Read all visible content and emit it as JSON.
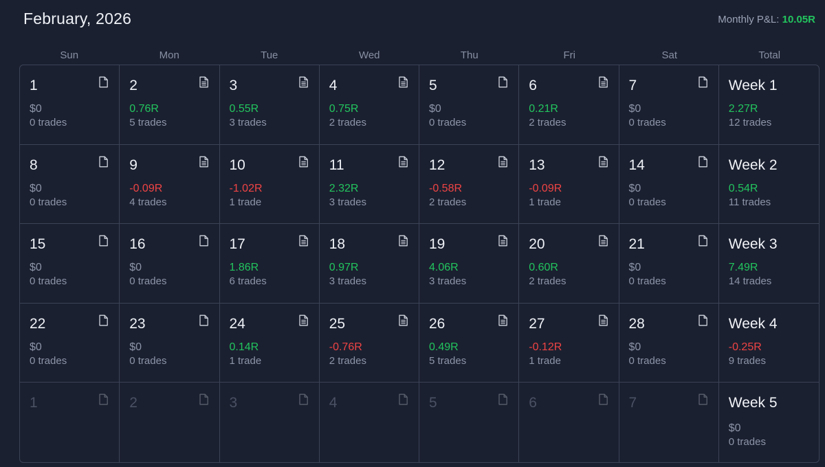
{
  "header": {
    "title": "February, 2026",
    "monthly_label": "Monthly P&L:",
    "monthly_value": "10.05R"
  },
  "weekdays": [
    "Sun",
    "Mon",
    "Tue",
    "Wed",
    "Thu",
    "Fri",
    "Sat",
    "Total"
  ],
  "weeks": [
    {
      "days": [
        {
          "day": "1",
          "pnl": "$0",
          "trades": "0 trades",
          "sign": "zero",
          "note": "blank"
        },
        {
          "day": "2",
          "pnl": "0.76R",
          "trades": "5 trades",
          "sign": "pos",
          "note": "lines"
        },
        {
          "day": "3",
          "pnl": "0.55R",
          "trades": "3 trades",
          "sign": "pos",
          "note": "lines"
        },
        {
          "day": "4",
          "pnl": "0.75R",
          "trades": "2 trades",
          "sign": "pos",
          "note": "lines"
        },
        {
          "day": "5",
          "pnl": "$0",
          "trades": "0 trades",
          "sign": "zero",
          "note": "blank"
        },
        {
          "day": "6",
          "pnl": "0.21R",
          "trades": "2 trades",
          "sign": "pos",
          "note": "lines"
        },
        {
          "day": "7",
          "pnl": "$0",
          "trades": "0 trades",
          "sign": "zero",
          "note": "blank"
        }
      ],
      "total": {
        "label": "Week 1",
        "pnl": "2.27R",
        "trades": "12 trades",
        "sign": "pos"
      }
    },
    {
      "days": [
        {
          "day": "8",
          "pnl": "$0",
          "trades": "0 trades",
          "sign": "zero",
          "note": "blank"
        },
        {
          "day": "9",
          "pnl": "-0.09R",
          "trades": "4 trades",
          "sign": "neg",
          "note": "lines"
        },
        {
          "day": "10",
          "pnl": "-1.02R",
          "trades": "1 trade",
          "sign": "neg",
          "note": "lines"
        },
        {
          "day": "11",
          "pnl": "2.32R",
          "trades": "3 trades",
          "sign": "pos",
          "note": "lines"
        },
        {
          "day": "12",
          "pnl": "-0.58R",
          "trades": "2 trades",
          "sign": "neg",
          "note": "lines"
        },
        {
          "day": "13",
          "pnl": "-0.09R",
          "trades": "1 trade",
          "sign": "neg",
          "note": "lines"
        },
        {
          "day": "14",
          "pnl": "$0",
          "trades": "0 trades",
          "sign": "zero",
          "note": "blank"
        }
      ],
      "total": {
        "label": "Week 2",
        "pnl": "0.54R",
        "trades": "11 trades",
        "sign": "pos"
      }
    },
    {
      "days": [
        {
          "day": "15",
          "pnl": "$0",
          "trades": "0 trades",
          "sign": "zero",
          "note": "blank"
        },
        {
          "day": "16",
          "pnl": "$0",
          "trades": "0 trades",
          "sign": "zero",
          "note": "blank"
        },
        {
          "day": "17",
          "pnl": "1.86R",
          "trades": "6 trades",
          "sign": "pos",
          "note": "lines"
        },
        {
          "day": "18",
          "pnl": "0.97R",
          "trades": "3 trades",
          "sign": "pos",
          "note": "lines"
        },
        {
          "day": "19",
          "pnl": "4.06R",
          "trades": "3 trades",
          "sign": "pos",
          "note": "lines"
        },
        {
          "day": "20",
          "pnl": "0.60R",
          "trades": "2 trades",
          "sign": "pos",
          "note": "lines"
        },
        {
          "day": "21",
          "pnl": "$0",
          "trades": "0 trades",
          "sign": "zero",
          "note": "blank"
        }
      ],
      "total": {
        "label": "Week 3",
        "pnl": "7.49R",
        "trades": "14 trades",
        "sign": "pos"
      }
    },
    {
      "days": [
        {
          "day": "22",
          "pnl": "$0",
          "trades": "0 trades",
          "sign": "zero",
          "note": "blank"
        },
        {
          "day": "23",
          "pnl": "$0",
          "trades": "0 trades",
          "sign": "zero",
          "note": "blank"
        },
        {
          "day": "24",
          "pnl": "0.14R",
          "trades": "1 trade",
          "sign": "pos",
          "note": "lines"
        },
        {
          "day": "25",
          "pnl": "-0.76R",
          "trades": "2 trades",
          "sign": "neg",
          "note": "lines"
        },
        {
          "day": "26",
          "pnl": "0.49R",
          "trades": "5 trades",
          "sign": "pos",
          "note": "lines"
        },
        {
          "day": "27",
          "pnl": "-0.12R",
          "trades": "1 trade",
          "sign": "neg",
          "note": "lines"
        },
        {
          "day": "28",
          "pnl": "$0",
          "trades": "0 trades",
          "sign": "zero",
          "note": "blank"
        }
      ],
      "total": {
        "label": "Week 4",
        "pnl": "-0.25R",
        "trades": "9 trades",
        "sign": "neg"
      }
    },
    {
      "days": [
        {
          "day": "1",
          "muted": true,
          "note": "blank"
        },
        {
          "day": "2",
          "muted": true,
          "note": "blank"
        },
        {
          "day": "3",
          "muted": true,
          "note": "blank"
        },
        {
          "day": "4",
          "muted": true,
          "note": "blank"
        },
        {
          "day": "5",
          "muted": true,
          "note": "blank"
        },
        {
          "day": "6",
          "muted": true,
          "note": "blank"
        },
        {
          "day": "7",
          "muted": true,
          "note": "blank"
        }
      ],
      "total": {
        "label": "Week 5",
        "pnl": "$0",
        "trades": "0 trades",
        "sign": "zero"
      }
    }
  ],
  "colors": {
    "background": "#1b2030",
    "border": "#3b4356",
    "positive": "#22c55e",
    "negative": "#ef4444",
    "muted_text": "#8c95a8"
  },
  "icons": {
    "note_blank": "document-icon",
    "note_lines": "document-notes-icon"
  }
}
